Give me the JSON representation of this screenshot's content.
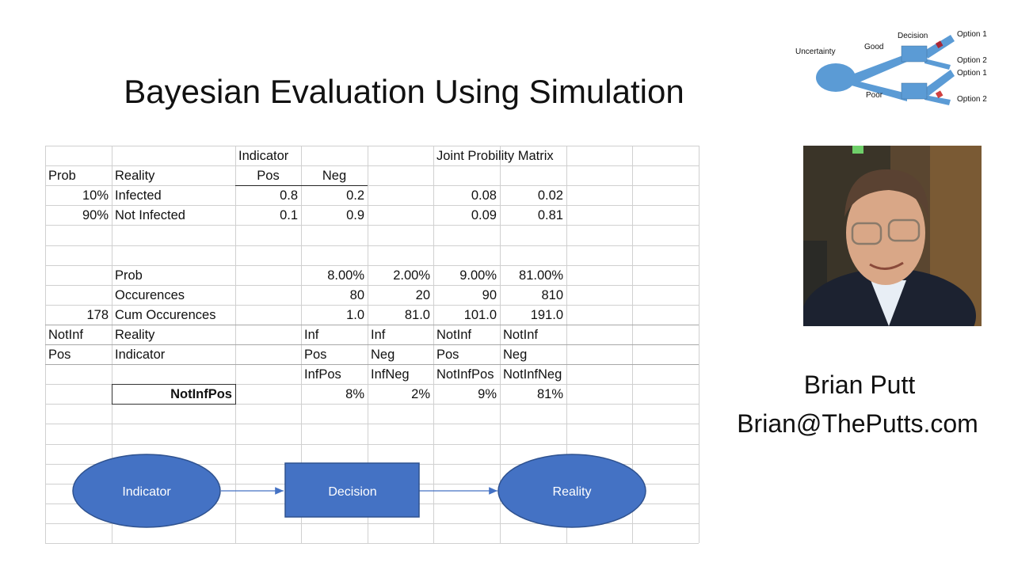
{
  "slide": {
    "title": "Bayesian Evaluation Using Simulation"
  },
  "sheet": {
    "rows": [
      [
        {
          "col": 2,
          "text": "Indicator",
          "align": "l"
        },
        {
          "col": 5,
          "text": "Joint Probility Matrix",
          "align": "l"
        }
      ],
      [
        {
          "col": 0,
          "text": "Prob",
          "align": "l"
        },
        {
          "col": 1,
          "text": "Reality",
          "align": "l"
        },
        {
          "col": 2,
          "text": "Pos",
          "align": "c"
        },
        {
          "col": 3,
          "text": "Neg",
          "align": "c"
        }
      ],
      [
        {
          "col": 0,
          "text": "10%",
          "align": "r"
        },
        {
          "col": 1,
          "text": "Infected",
          "align": "l"
        },
        {
          "col": 2,
          "text": "0.8",
          "align": "r"
        },
        {
          "col": 3,
          "text": "0.2",
          "align": "r"
        },
        {
          "col": 5,
          "text": "0.08",
          "align": "r"
        },
        {
          "col": 6,
          "text": "0.02",
          "align": "r"
        }
      ],
      [
        {
          "col": 0,
          "text": "90%",
          "align": "r"
        },
        {
          "col": 1,
          "text": "Not Infected",
          "align": "l"
        },
        {
          "col": 2,
          "text": "0.1",
          "align": "r"
        },
        {
          "col": 3,
          "text": "0.9",
          "align": "r"
        },
        {
          "col": 5,
          "text": "0.09",
          "align": "r"
        },
        {
          "col": 6,
          "text": "0.81",
          "align": "r"
        }
      ],
      [],
      [],
      [
        {
          "col": 1,
          "text": "Prob",
          "align": "l"
        },
        {
          "col": 3,
          "text": "8.00%",
          "align": "r"
        },
        {
          "col": 4,
          "text": "2.00%",
          "align": "r"
        },
        {
          "col": 5,
          "text": "9.00%",
          "align": "r"
        },
        {
          "col": 6,
          "text": "81.00%",
          "align": "r"
        }
      ],
      [
        {
          "col": 1,
          "text": "Occurences",
          "align": "l"
        },
        {
          "col": 3,
          "text": "80",
          "align": "r"
        },
        {
          "col": 4,
          "text": "20",
          "align": "r"
        },
        {
          "col": 5,
          "text": "90",
          "align": "r"
        },
        {
          "col": 6,
          "text": "810",
          "align": "r"
        }
      ],
      [
        {
          "col": 0,
          "text": "178",
          "align": "r"
        },
        {
          "col": 1,
          "text": "Cum Occurences",
          "align": "l"
        },
        {
          "col": 3,
          "text": "1.0",
          "align": "r"
        },
        {
          "col": 4,
          "text": "81.0",
          "align": "r"
        },
        {
          "col": 5,
          "text": "101.0",
          "align": "r"
        },
        {
          "col": 6,
          "text": "191.0",
          "align": "r"
        }
      ],
      [
        {
          "col": 0,
          "text": "NotInf",
          "align": "l"
        },
        {
          "col": 1,
          "text": "Reality",
          "align": "l"
        },
        {
          "col": 3,
          "text": "Inf",
          "align": "l"
        },
        {
          "col": 4,
          "text": "Inf",
          "align": "l"
        },
        {
          "col": 5,
          "text": "NotInf",
          "align": "l"
        },
        {
          "col": 6,
          "text": "NotInf",
          "align": "l"
        }
      ],
      [
        {
          "col": 0,
          "text": "Pos",
          "align": "l"
        },
        {
          "col": 1,
          "text": "Indicator",
          "align": "l"
        },
        {
          "col": 3,
          "text": "Pos",
          "align": "l"
        },
        {
          "col": 4,
          "text": "Neg",
          "align": "l"
        },
        {
          "col": 5,
          "text": "Pos",
          "align": "l"
        },
        {
          "col": 6,
          "text": "Neg",
          "align": "l"
        }
      ],
      [
        {
          "col": 3,
          "text": "InfPos",
          "align": "l"
        },
        {
          "col": 4,
          "text": "InfNeg",
          "align": "l"
        },
        {
          "col": 5,
          "text": "NotInfPos",
          "align": "l"
        },
        {
          "col": 6,
          "text": "NotInfNeg",
          "align": "l"
        }
      ],
      [
        {
          "col": 1,
          "text": "NotInfPos",
          "align": "r",
          "bold": true
        },
        {
          "col": 3,
          "text": "8%",
          "align": "r"
        },
        {
          "col": 4,
          "text": "2%",
          "align": "r"
        },
        {
          "col": 5,
          "text": "9%",
          "align": "r"
        },
        {
          "col": 6,
          "text": "81%",
          "align": "r"
        }
      ]
    ]
  },
  "flow": {
    "indicator": "Indicator",
    "decision": "Decision",
    "reality": "Reality",
    "fill": "#4472c4",
    "text_color": "#ffffff"
  },
  "tree": {
    "uncertainty": "Uncertainty",
    "good": "Good",
    "poor": "Poor",
    "decision": "Decision",
    "option1a": "Option 1",
    "option2a": "Option 2",
    "option1b": "Option 1",
    "option2b": "Option 2",
    "fill": "#5b9bd5"
  },
  "speaker": {
    "name": "Brian Putt",
    "email": "Brian@ThePutts.com"
  }
}
